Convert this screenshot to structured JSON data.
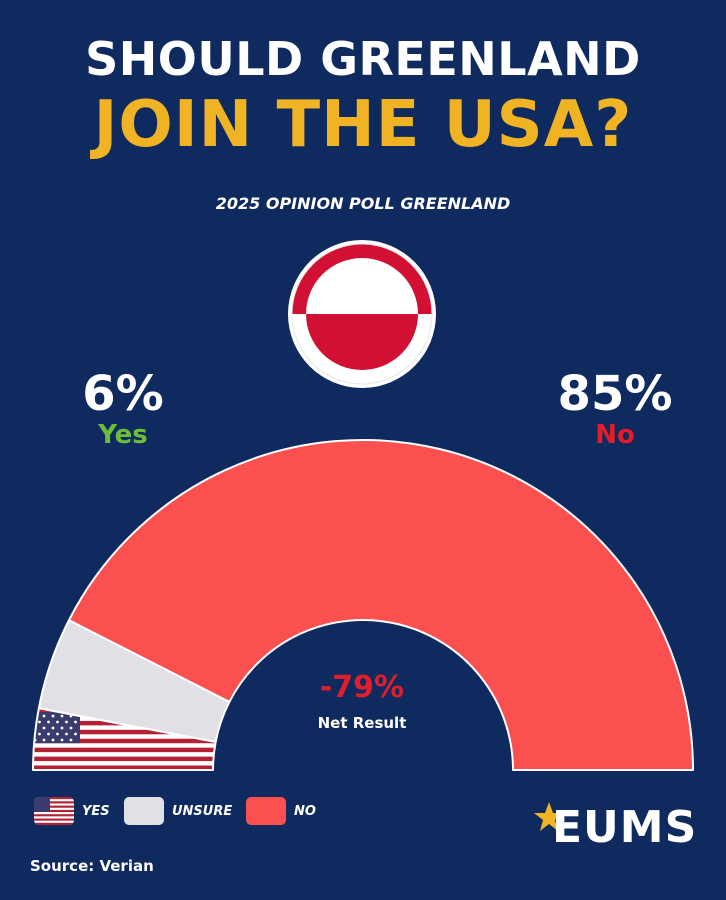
{
  "header": {
    "title_line1": "SHOULD GREENLAND",
    "title_line2": "JOIN THE USA?",
    "subtitle": "2025 OPINION POLL GREENLAND"
  },
  "colors": {
    "background": "#0f2a5f",
    "accent_yellow": "#efb323",
    "yes_green": "#6cbe3a",
    "no_red": "#e11d2a",
    "no_fill": "#fa5050",
    "unsure_fill": "#e1e1e5"
  },
  "chart_data": {
    "type": "pie",
    "subtype": "half-donut",
    "title": "SHOULD GREENLAND JOIN THE USA?",
    "subtitle": "2025 OPINION POLL GREENLAND",
    "series": [
      {
        "name": "YES",
        "label": "Yes",
        "value": 6,
        "display": "6%",
        "fill": "us-flag"
      },
      {
        "name": "UNSURE",
        "value": 9,
        "fill": "#e1e1e5"
      },
      {
        "name": "NO",
        "label": "No",
        "value": 85,
        "display": "85%",
        "fill": "#fa5050"
      }
    ],
    "net_result": {
      "value": "-79%",
      "label": "Net Result"
    },
    "legend": {
      "placement": "bottom-left",
      "items": [
        "YES",
        "UNSURE",
        "NO"
      ]
    }
  },
  "footer": {
    "source": "Source: Verian",
    "logo_text": "EUMS"
  }
}
